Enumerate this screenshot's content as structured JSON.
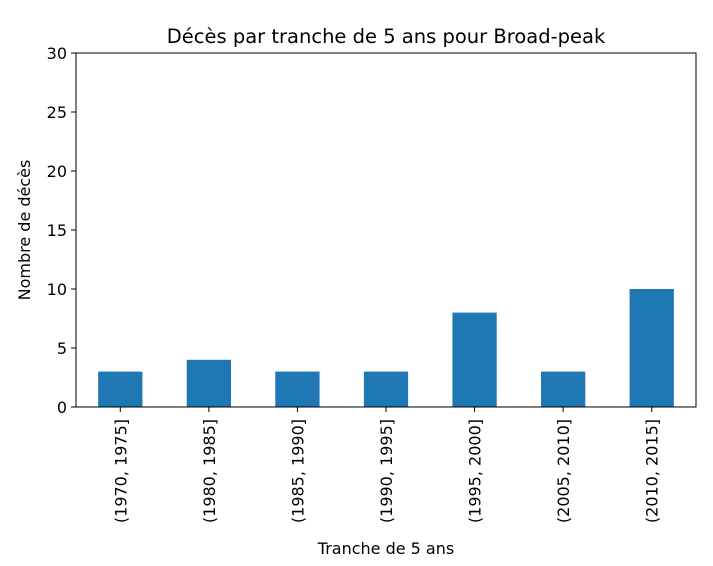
{
  "chart_data": {
    "type": "bar",
    "title": "Décès par tranche de 5 ans pour Broad-peak",
    "xlabel": "Tranche de 5 ans",
    "ylabel": "Nombre de décès",
    "categories": [
      "(1970, 1975]",
      "(1980, 1985]",
      "(1985, 1990]",
      "(1990, 1995]",
      "(1995, 2000]",
      "(2005, 2010]",
      "(2010, 2015]"
    ],
    "values": [
      3,
      4,
      3,
      3,
      8,
      3,
      10
    ],
    "ylim": [
      0,
      30
    ],
    "yticks": [
      0,
      5,
      10,
      15,
      20,
      25,
      30
    ],
    "grid": false,
    "bar_color": "#1f77b4"
  }
}
